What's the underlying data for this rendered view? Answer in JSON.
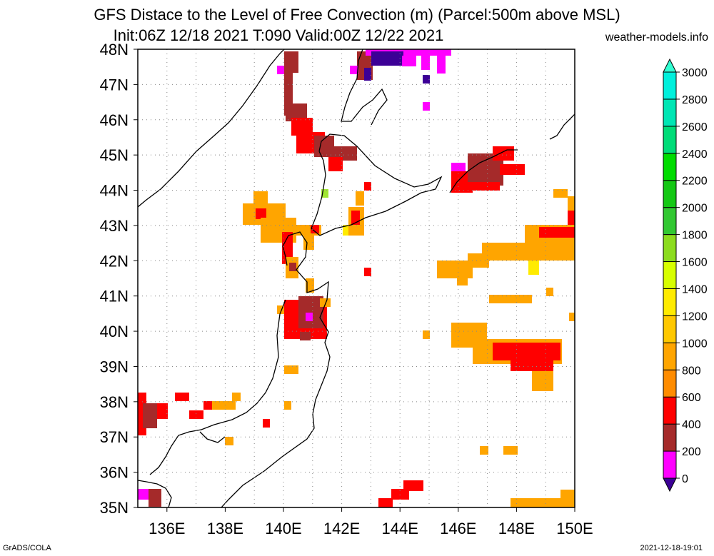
{
  "title_line1": "GFS Distace to the Level of Free Convection (m) (Parcel:500m above MSL)",
  "title_line2": "Init:06Z 12/18 2021 T:090 Valid:00Z 12/22 2021",
  "site": "weather-models.info",
  "footer_left": "GrADS/COLA",
  "footer_right": "2021-12-18-19:01",
  "map": {
    "lon_range": [
      135,
      150
    ],
    "lat_range": [
      35,
      48
    ],
    "lat_labels": [
      "35N",
      "36N",
      "37N",
      "38N",
      "39N",
      "40N",
      "41N",
      "42N",
      "43N",
      "44N",
      "45N",
      "46N",
      "47N",
      "48N"
    ],
    "lon_labels": [
      "136E",
      "138E",
      "140E",
      "142E",
      "144E",
      "146E",
      "148E",
      "150E"
    ],
    "grid": "dotted every 1 degree"
  },
  "colorbar": {
    "labels": [
      "0",
      "200",
      "400",
      "600",
      "800",
      "1000",
      "1200",
      "1400",
      "1600",
      "1800",
      "2000",
      "2200",
      "2400",
      "2600",
      "2800",
      "3000"
    ],
    "colors": [
      "#3c0096",
      "#ff00ff",
      "#a52a2a",
      "#ff0000",
      "#ff8c00",
      "#ffa500",
      "#ffc800",
      "#ffeb00",
      "#d7ff00",
      "#8cdc1e",
      "#32c832",
      "#14c814",
      "#00dc00",
      "#00dc78",
      "#00e6b4",
      "#00f0dc",
      "#32ffd2"
    ]
  }
}
